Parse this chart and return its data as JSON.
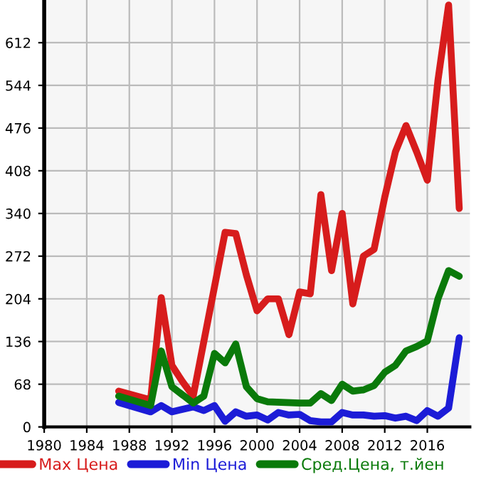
{
  "chart_data": {
    "type": "line",
    "xlim": [
      1980,
      2020
    ],
    "xticks": [
      1980,
      1984,
      1988,
      1992,
      1996,
      2000,
      2004,
      2008,
      2012,
      2016
    ],
    "ylim": [
      0,
      680
    ],
    "yticks": [
      0,
      68,
      136,
      204,
      272,
      340,
      408,
      476,
      544,
      612
    ],
    "grid": true,
    "legend": "bottom",
    "marker": "none",
    "line_style": "solid",
    "series": [
      {
        "name": "Max Цена",
        "color": "#d71c1c",
        "x": [
          1987,
          1990,
          1991,
          1992,
          1993,
          1994,
          1997,
          1998,
          1999,
          2000,
          2001,
          2002,
          2003,
          2004,
          2005,
          2006,
          2007,
          2008,
          2009,
          2010,
          2011,
          2012,
          2013,
          2014,
          2015,
          2016,
          2017,
          2018,
          2019
        ],
        "values": [
          57,
          43,
          206,
          98,
          72,
          49,
          310,
          308,
          242,
          185,
          204,
          204,
          147,
          215,
          212,
          370,
          249,
          340,
          196,
          272,
          283,
          366,
          438,
          480,
          438,
          393,
          552,
          672,
          348
        ]
      },
      {
        "name": "Min Цена",
        "color": "#1c1cd7",
        "x": [
          1987,
          1990,
          1991,
          1992,
          1994,
          1995,
          1996,
          1997,
          1998,
          1999,
          2000,
          2001,
          2002,
          2003,
          2004,
          2005,
          2006,
          2007,
          2008,
          2009,
          2010,
          2011,
          2012,
          2013,
          2014,
          2015,
          2016,
          2017,
          2018,
          2019
        ],
        "values": [
          39,
          24,
          34,
          24,
          32,
          26,
          34,
          9,
          24,
          17,
          19,
          11,
          23,
          19,
          20,
          10,
          8,
          8,
          23,
          19,
          19,
          17,
          18,
          14,
          17,
          10,
          26,
          17,
          30,
          142
        ]
      },
      {
        "name": "Сред.Цена, т.йен",
        "color": "#0a7a0a",
        "x": [
          1987,
          1990,
          1991,
          1992,
          1994,
          1995,
          1996,
          1997,
          1998,
          1999,
          2000,
          2001,
          2004,
          2005,
          2006,
          2007,
          2008,
          2009,
          2010,
          2011,
          2012,
          2013,
          2014,
          2015,
          2016,
          2017,
          2018,
          2019
        ],
        "values": [
          49,
          34,
          121,
          64,
          38,
          49,
          117,
          102,
          132,
          64,
          45,
          40,
          38,
          38,
          53,
          42,
          68,
          57,
          59,
          66,
          87,
          98,
          121,
          128,
          137,
          204,
          249,
          240
        ]
      }
    ]
  }
}
